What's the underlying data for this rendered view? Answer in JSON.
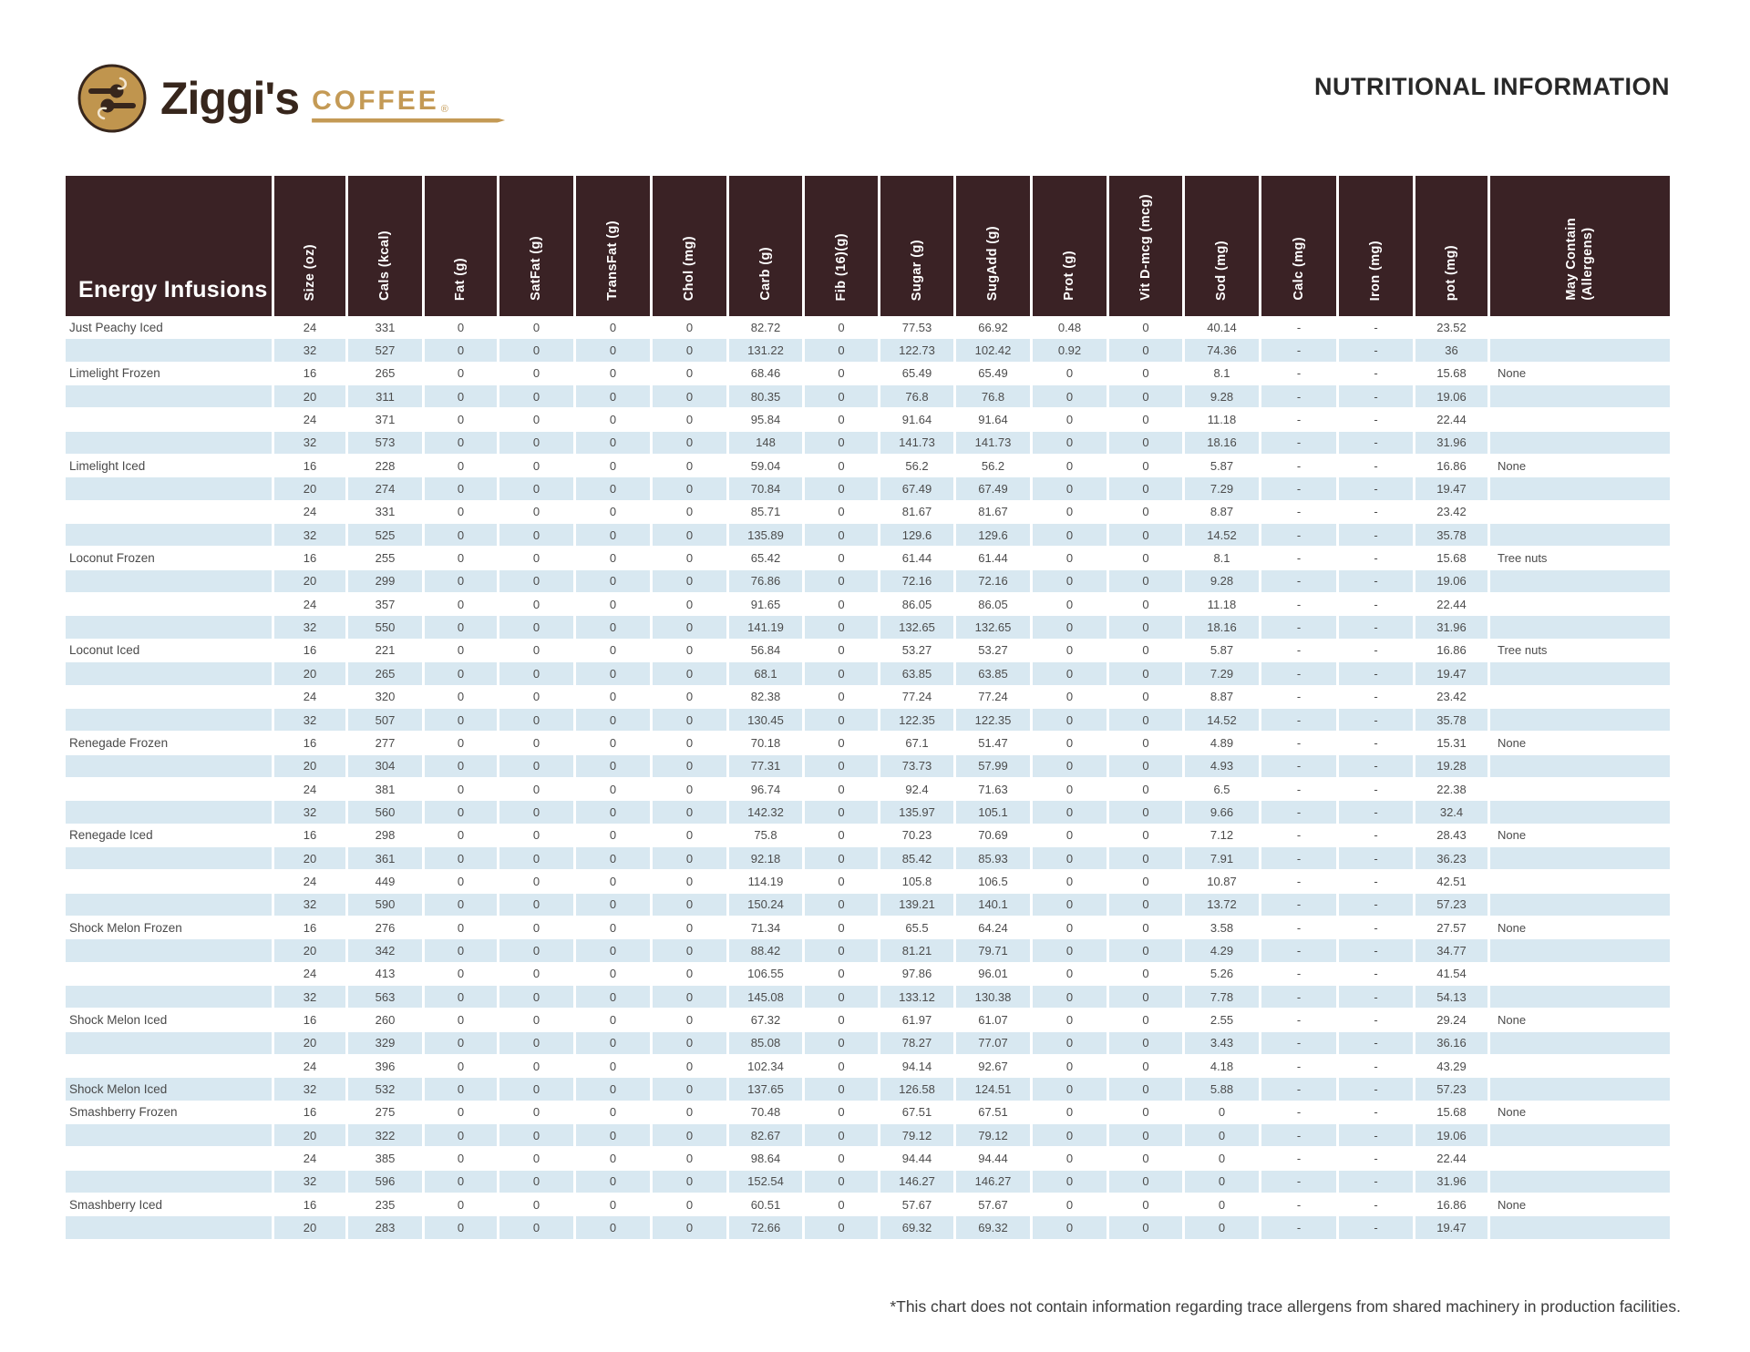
{
  "brand": {
    "name": "Ziggi's",
    "coffee": "COFFEE",
    "registered": "®"
  },
  "title": "NUTRITIONAL INFORMATION",
  "table": {
    "category_header": "Energy Infusions",
    "columns": [
      "Size (oz)",
      "Cals (kcal)",
      "Fat (g)",
      "SatFat (g)",
      "TransFat (g)",
      "Chol (mg)",
      "Carb (g)",
      "Fib (16)(g)",
      "Sugar (g)",
      "SugAdd (g)",
      "Prot (g)",
      "Vit D-mcg (mcg)",
      "Sod (mg)",
      "Calc (mg)",
      "Iron (mg)",
      "pot (mg)",
      "May Contain\n(Allergens)"
    ],
    "rows": [
      [
        "Just Peachy Iced",
        "24",
        "331",
        "0",
        "0",
        "0",
        "0",
        "82.72",
        "0",
        "77.53",
        "66.92",
        "0.48",
        "0",
        "40.14",
        "-",
        "-",
        "23.52",
        ""
      ],
      [
        "",
        "32",
        "527",
        "0",
        "0",
        "0",
        "0",
        "131.22",
        "0",
        "122.73",
        "102.42",
        "0.92",
        "0",
        "74.36",
        "-",
        "-",
        "36",
        ""
      ],
      [
        "Limelight Frozen",
        "16",
        "265",
        "0",
        "0",
        "0",
        "0",
        "68.46",
        "0",
        "65.49",
        "65.49",
        "0",
        "0",
        "8.1",
        "-",
        "-",
        "15.68",
        "None"
      ],
      [
        "",
        "20",
        "311",
        "0",
        "0",
        "0",
        "0",
        "80.35",
        "0",
        "76.8",
        "76.8",
        "0",
        "0",
        "9.28",
        "-",
        "-",
        "19.06",
        ""
      ],
      [
        "",
        "24",
        "371",
        "0",
        "0",
        "0",
        "0",
        "95.84",
        "0",
        "91.64",
        "91.64",
        "0",
        "0",
        "11.18",
        "-",
        "-",
        "22.44",
        ""
      ],
      [
        "",
        "32",
        "573",
        "0",
        "0",
        "0",
        "0",
        "148",
        "0",
        "141.73",
        "141.73",
        "0",
        "0",
        "18.16",
        "-",
        "-",
        "31.96",
        ""
      ],
      [
        "Limelight Iced",
        "16",
        "228",
        "0",
        "0",
        "0",
        "0",
        "59.04",
        "0",
        "56.2",
        "56.2",
        "0",
        "0",
        "5.87",
        "-",
        "-",
        "16.86",
        "None"
      ],
      [
        "",
        "20",
        "274",
        "0",
        "0",
        "0",
        "0",
        "70.84",
        "0",
        "67.49",
        "67.49",
        "0",
        "0",
        "7.29",
        "-",
        "-",
        "19.47",
        ""
      ],
      [
        "",
        "24",
        "331",
        "0",
        "0",
        "0",
        "0",
        "85.71",
        "0",
        "81.67",
        "81.67",
        "0",
        "0",
        "8.87",
        "-",
        "-",
        "23.42",
        ""
      ],
      [
        "",
        "32",
        "525",
        "0",
        "0",
        "0",
        "0",
        "135.89",
        "0",
        "129.6",
        "129.6",
        "0",
        "0",
        "14.52",
        "-",
        "-",
        "35.78",
        ""
      ],
      [
        "Loconut Frozen",
        "16",
        "255",
        "0",
        "0",
        "0",
        "0",
        "65.42",
        "0",
        "61.44",
        "61.44",
        "0",
        "0",
        "8.1",
        "-",
        "-",
        "15.68",
        "Tree nuts"
      ],
      [
        "",
        "20",
        "299",
        "0",
        "0",
        "0",
        "0",
        "76.86",
        "0",
        "72.16",
        "72.16",
        "0",
        "0",
        "9.28",
        "-",
        "-",
        "19.06",
        ""
      ],
      [
        "",
        "24",
        "357",
        "0",
        "0",
        "0",
        "0",
        "91.65",
        "0",
        "86.05",
        "86.05",
        "0",
        "0",
        "11.18",
        "-",
        "-",
        "22.44",
        ""
      ],
      [
        "",
        "32",
        "550",
        "0",
        "0",
        "0",
        "0",
        "141.19",
        "0",
        "132.65",
        "132.65",
        "0",
        "0",
        "18.16",
        "-",
        "-",
        "31.96",
        ""
      ],
      [
        "Loconut Iced",
        "16",
        "221",
        "0",
        "0",
        "0",
        "0",
        "56.84",
        "0",
        "53.27",
        "53.27",
        "0",
        "0",
        "5.87",
        "-",
        "-",
        "16.86",
        "Tree nuts"
      ],
      [
        "",
        "20",
        "265",
        "0",
        "0",
        "0",
        "0",
        "68.1",
        "0",
        "63.85",
        "63.85",
        "0",
        "0",
        "7.29",
        "-",
        "-",
        "19.47",
        ""
      ],
      [
        "",
        "24",
        "320",
        "0",
        "0",
        "0",
        "0",
        "82.38",
        "0",
        "77.24",
        "77.24",
        "0",
        "0",
        "8.87",
        "-",
        "-",
        "23.42",
        ""
      ],
      [
        "",
        "32",
        "507",
        "0",
        "0",
        "0",
        "0",
        "130.45",
        "0",
        "122.35",
        "122.35",
        "0",
        "0",
        "14.52",
        "-",
        "-",
        "35.78",
        ""
      ],
      [
        "Renegade Frozen",
        "16",
        "277",
        "0",
        "0",
        "0",
        "0",
        "70.18",
        "0",
        "67.1",
        "51.47",
        "0",
        "0",
        "4.89",
        "-",
        "-",
        "15.31",
        "None"
      ],
      [
        "",
        "20",
        "304",
        "0",
        "0",
        "0",
        "0",
        "77.31",
        "0",
        "73.73",
        "57.99",
        "0",
        "0",
        "4.93",
        "-",
        "-",
        "19.28",
        ""
      ],
      [
        "",
        "24",
        "381",
        "0",
        "0",
        "0",
        "0",
        "96.74",
        "0",
        "92.4",
        "71.63",
        "0",
        "0",
        "6.5",
        "-",
        "-",
        "22.38",
        ""
      ],
      [
        "",
        "32",
        "560",
        "0",
        "0",
        "0",
        "0",
        "142.32",
        "0",
        "135.97",
        "105.1",
        "0",
        "0",
        "9.66",
        "-",
        "-",
        "32.4",
        ""
      ],
      [
        "Renegade Iced",
        "16",
        "298",
        "0",
        "0",
        "0",
        "0",
        "75.8",
        "0",
        "70.23",
        "70.69",
        "0",
        "0",
        "7.12",
        "-",
        "-",
        "28.43",
        "None"
      ],
      [
        "",
        "20",
        "361",
        "0",
        "0",
        "0",
        "0",
        "92.18",
        "0",
        "85.42",
        "85.93",
        "0",
        "0",
        "7.91",
        "-",
        "-",
        "36.23",
        ""
      ],
      [
        "",
        "24",
        "449",
        "0",
        "0",
        "0",
        "0",
        "114.19",
        "0",
        "105.8",
        "106.5",
        "0",
        "0",
        "10.87",
        "-",
        "-",
        "42.51",
        ""
      ],
      [
        "",
        "32",
        "590",
        "0",
        "0",
        "0",
        "0",
        "150.24",
        "0",
        "139.21",
        "140.1",
        "0",
        "0",
        "13.72",
        "-",
        "-",
        "57.23",
        ""
      ],
      [
        "Shock Melon Frozen",
        "16",
        "276",
        "0",
        "0",
        "0",
        "0",
        "71.34",
        "0",
        "65.5",
        "64.24",
        "0",
        "0",
        "3.58",
        "-",
        "-",
        "27.57",
        "None"
      ],
      [
        "",
        "20",
        "342",
        "0",
        "0",
        "0",
        "0",
        "88.42",
        "0",
        "81.21",
        "79.71",
        "0",
        "0",
        "4.29",
        "-",
        "-",
        "34.77",
        ""
      ],
      [
        "",
        "24",
        "413",
        "0",
        "0",
        "0",
        "0",
        "106.55",
        "0",
        "97.86",
        "96.01",
        "0",
        "0",
        "5.26",
        "-",
        "-",
        "41.54",
        ""
      ],
      [
        "",
        "32",
        "563",
        "0",
        "0",
        "0",
        "0",
        "145.08",
        "0",
        "133.12",
        "130.38",
        "0",
        "0",
        "7.78",
        "-",
        "-",
        "54.13",
        ""
      ],
      [
        "Shock Melon Iced",
        "16",
        "260",
        "0",
        "0",
        "0",
        "0",
        "67.32",
        "0",
        "61.97",
        "61.07",
        "0",
        "0",
        "2.55",
        "-",
        "-",
        "29.24",
        "None"
      ],
      [
        "",
        "20",
        "329",
        "0",
        "0",
        "0",
        "0",
        "85.08",
        "0",
        "78.27",
        "77.07",
        "0",
        "0",
        "3.43",
        "-",
        "-",
        "36.16",
        ""
      ],
      [
        "",
        "24",
        "396",
        "0",
        "0",
        "0",
        "0",
        "102.34",
        "0",
        "94.14",
        "92.67",
        "0",
        "0",
        "4.18",
        "-",
        "-",
        "43.29",
        ""
      ],
      [
        "Shock Melon Iced",
        "32",
        "532",
        "0",
        "0",
        "0",
        "0",
        "137.65",
        "0",
        "126.58",
        "124.51",
        "0",
        "0",
        "5.88",
        "-",
        "-",
        "57.23",
        ""
      ],
      [
        "Smashberry Frozen",
        "16",
        "275",
        "0",
        "0",
        "0",
        "0",
        "70.48",
        "0",
        "67.51",
        "67.51",
        "0",
        "0",
        "0",
        "-",
        "-",
        "15.68",
        "None"
      ],
      [
        "",
        "20",
        "322",
        "0",
        "0",
        "0",
        "0",
        "82.67",
        "0",
        "79.12",
        "79.12",
        "0",
        "0",
        "0",
        "-",
        "-",
        "19.06",
        ""
      ],
      [
        "",
        "24",
        "385",
        "0",
        "0",
        "0",
        "0",
        "98.64",
        "0",
        "94.44",
        "94.44",
        "0",
        "0",
        "0",
        "-",
        "-",
        "22.44",
        ""
      ],
      [
        "",
        "32",
        "596",
        "0",
        "0",
        "0",
        "0",
        "152.54",
        "0",
        "146.27",
        "146.27",
        "0",
        "0",
        "0",
        "-",
        "-",
        "31.96",
        ""
      ],
      [
        "Smashberry Iced",
        "16",
        "235",
        "0",
        "0",
        "0",
        "0",
        "60.51",
        "0",
        "57.67",
        "57.67",
        "0",
        "0",
        "0",
        "-",
        "-",
        "16.86",
        "None"
      ],
      [
        "",
        "20",
        "283",
        "0",
        "0",
        "0",
        "0",
        "72.66",
        "0",
        "69.32",
        "69.32",
        "0",
        "0",
        "0",
        "-",
        "-",
        "19.47",
        ""
      ]
    ]
  },
  "footnote": "*This chart does not contain information regarding trace allergens from shared machinery in production facilities.",
  "colors": {
    "header_bg": "#3a2225",
    "row_alt": "#d8e8f1",
    "gold": "#c49a55",
    "text": "#4c4c4c"
  }
}
